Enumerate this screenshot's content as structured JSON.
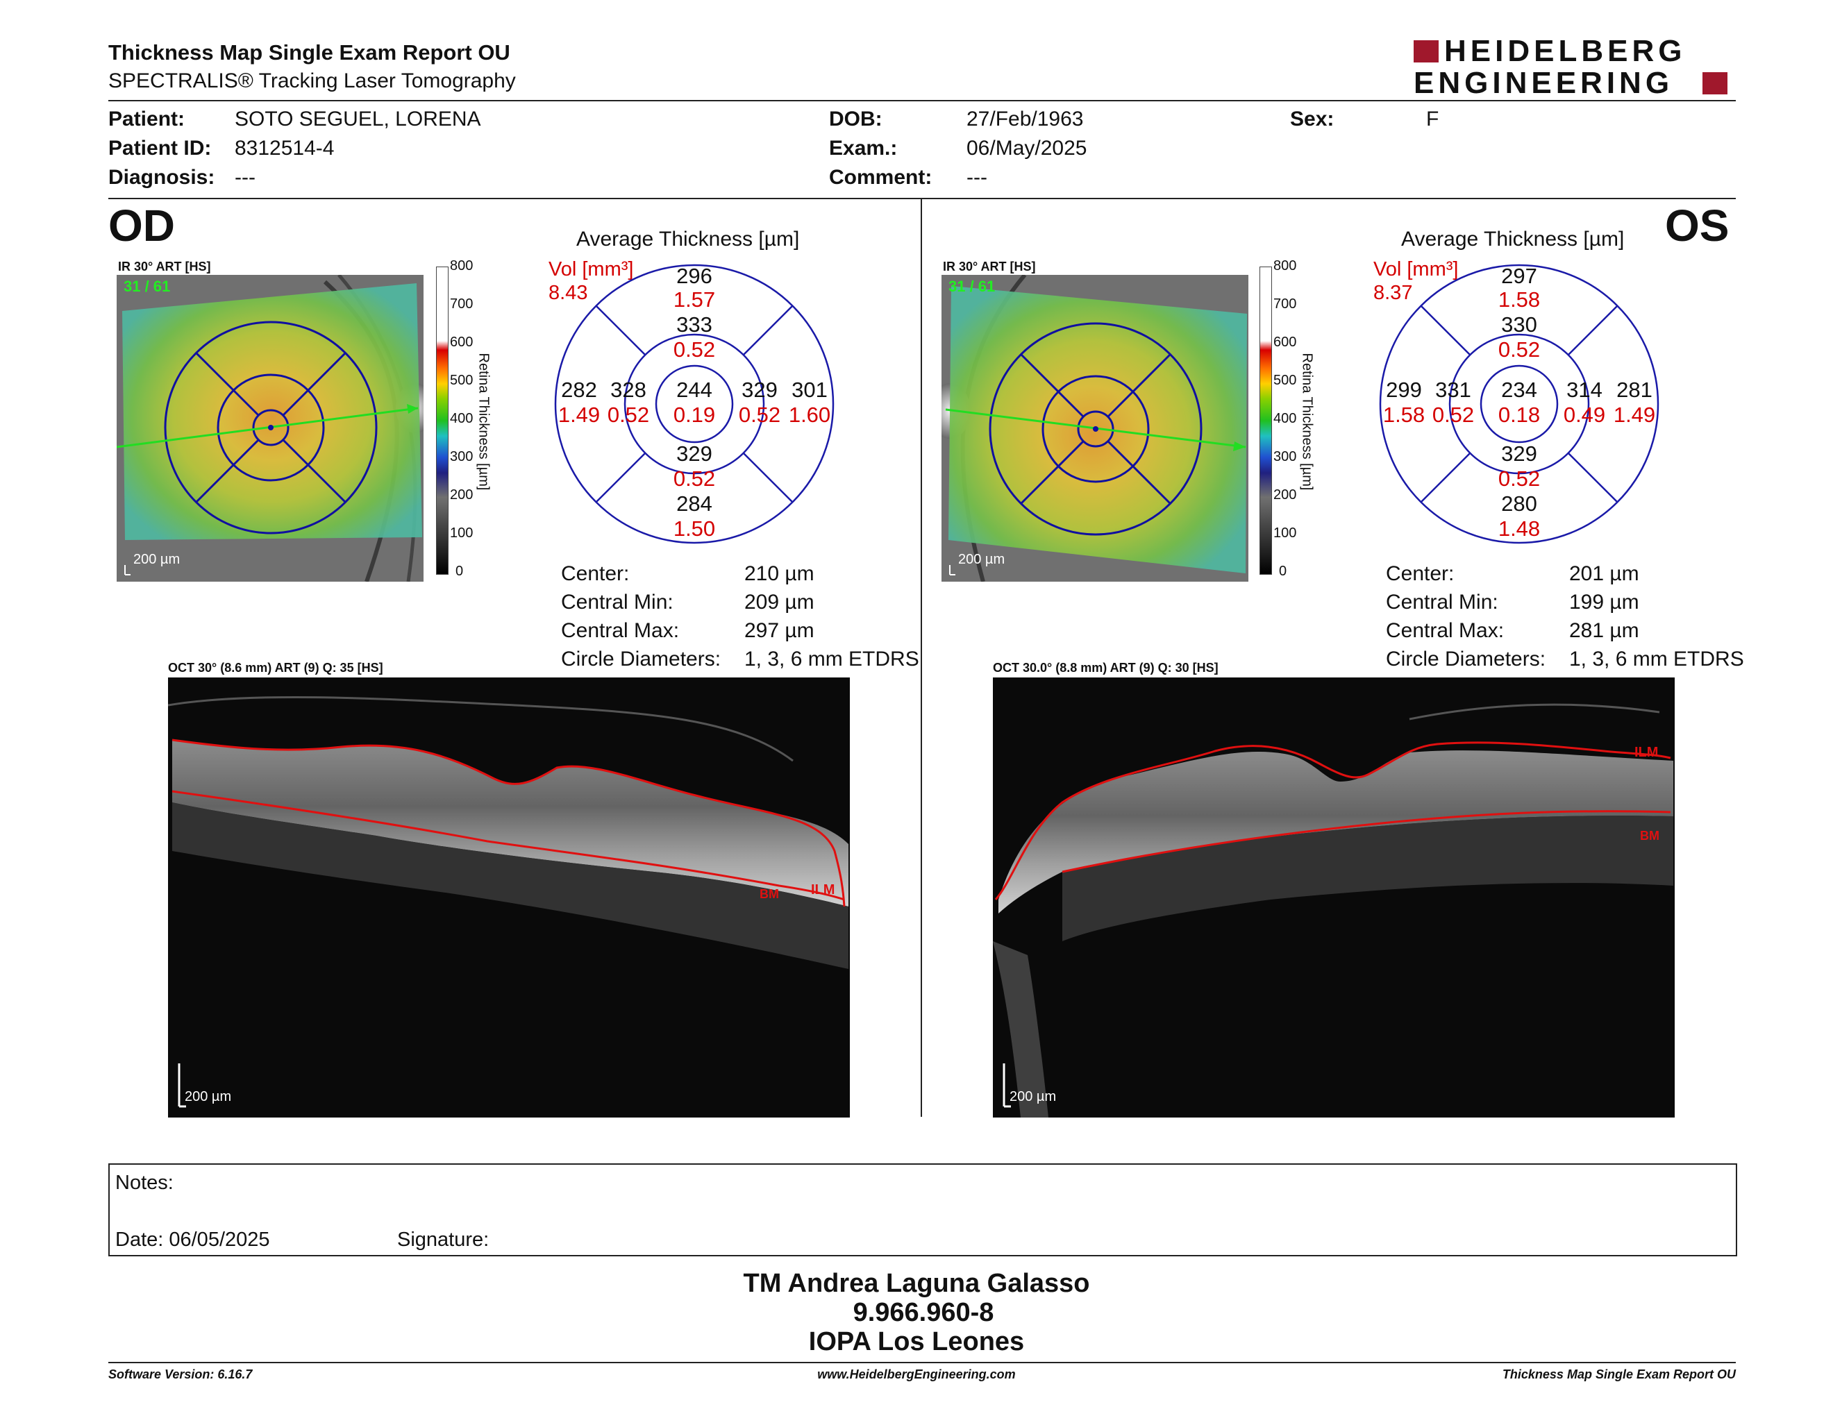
{
  "header": {
    "title": "Thickness Map Single Exam Report OU",
    "subtitle": "SPECTRALIS® Tracking Laser Tomography",
    "logo_top": "HEIDELBERG",
    "logo_bottom": "ENGINEERING"
  },
  "patient": {
    "patient_label": "Patient:",
    "patient_value": "SOTO SEGUEL, LORENA",
    "id_label": "Patient ID:",
    "id_value": "8312514-4",
    "diagnosis_label": "Diagnosis:",
    "diagnosis_value": "---",
    "dob_label": "DOB:",
    "dob_value": "27/Feb/1963",
    "exam_label": "Exam.:",
    "exam_value": "06/May/2025",
    "comment_label": "Comment:",
    "comment_value": "---",
    "sex_label": "Sex:",
    "sex_value": "F"
  },
  "od": {
    "eye": "OD",
    "ir_label": "IR 30° ART [HS]",
    "ir_scalebar": "200 µm",
    "ir_counter": "31 / 61",
    "colorbar_ticks": [
      "800",
      "700",
      "600",
      "500",
      "400",
      "300",
      "200",
      "100",
      "0"
    ],
    "colorbar_label": "Retina Thickness [µm]",
    "avg_title": "Average Thickness [µm]",
    "vol_label": "Vol [mm³]",
    "vol_value": "8.43",
    "sectors": {
      "outer_top": "296",
      "outer_top_vol": "1.57",
      "inner_top": "333",
      "inner_top_vol": "0.52",
      "outer_left": "282",
      "outer_left_vol": "1.49",
      "inner_left": "328",
      "inner_left_vol": "0.52",
      "center": "244",
      "center_vol": "0.19",
      "inner_right": "329",
      "inner_right_vol": "0.52",
      "outer_right": "301",
      "outer_right_vol": "1.60",
      "inner_bottom": "329",
      "inner_bottom_vol": "0.52",
      "outer_bottom": "284",
      "outer_bottom_vol": "1.50"
    },
    "stats": {
      "center_label": "Center:",
      "center_value": "210 µm",
      "min_label": "Central Min:",
      "min_value": "209 µm",
      "max_label": "Central Max:",
      "max_value": "297 µm",
      "diam_label": "Circle Diameters:",
      "diam_value": "1, 3, 6 mm ETDRS"
    },
    "oct_label": "OCT 30° (8.6 mm) ART (9) Q: 35 [HS]",
    "oct_scalebar": "200 µm",
    "ilm": "ILM",
    "bm": "BM"
  },
  "os": {
    "eye": "OS",
    "ir_label": "IR 30° ART [HS]",
    "ir_scalebar": "200 µm",
    "ir_counter": "31 / 61",
    "colorbar_ticks": [
      "800",
      "700",
      "600",
      "500",
      "400",
      "300",
      "200",
      "100",
      "0"
    ],
    "colorbar_label": "Retina Thickness [µm]",
    "avg_title": "Average Thickness [µm]",
    "vol_label": "Vol [mm³]",
    "vol_value": "8.37",
    "sectors": {
      "outer_top": "297",
      "outer_top_vol": "1.58",
      "inner_top": "330",
      "inner_top_vol": "0.52",
      "outer_left": "299",
      "outer_left_vol": "1.58",
      "inner_left": "331",
      "inner_left_vol": "0.52",
      "center": "234",
      "center_vol": "0.18",
      "inner_right": "314",
      "inner_right_vol": "0.49",
      "outer_right": "281",
      "outer_right_vol": "1.49",
      "inner_bottom": "329",
      "inner_bottom_vol": "0.52",
      "outer_bottom": "280",
      "outer_bottom_vol": "1.48"
    },
    "stats": {
      "center_label": "Center:",
      "center_value": "201 µm",
      "min_label": "Central Min:",
      "min_value": "199 µm",
      "max_label": "Central Max:",
      "max_value": "281 µm",
      "diam_label": "Circle Diameters:",
      "diam_value": "1, 3, 6 mm ETDRS"
    },
    "oct_label": "OCT 30.0° (8.8 mm) ART (9) Q: 30 [HS]",
    "oct_scalebar": "200 µm",
    "ilm": "ILM",
    "bm": "BM"
  },
  "notes": {
    "notes_label": "Notes:",
    "date_label": "Date: 06/05/2025",
    "signature_label": "Signature:"
  },
  "signer": {
    "name": "TM Andrea Laguna Galasso",
    "id": "9.966.960-8",
    "institution": "IOPA Los Leones"
  },
  "footer": {
    "software": "Software Version: 6.16.7",
    "website": "www.HeidelbergEngineering.com",
    "report": "Thickness Map Single Exam Report OU"
  },
  "colors": {
    "accent_red": "#d40000",
    "logo_red": "#a0182c",
    "grid_blue": "#1a1aa8"
  }
}
